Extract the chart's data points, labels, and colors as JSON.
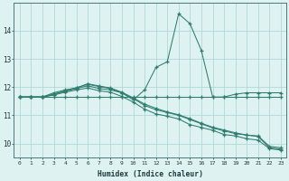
{
  "xlabel": "Humidex (Indice chaleur)",
  "x": [
    0,
    1,
    2,
    3,
    4,
    5,
    6,
    7,
    8,
    9,
    10,
    11,
    12,
    13,
    14,
    15,
    16,
    17,
    18,
    19,
    20,
    21,
    22,
    23
  ],
  "series": [
    [
      11.65,
      11.65,
      11.65,
      11.65,
      11.65,
      11.65,
      11.65,
      11.65,
      11.65,
      11.65,
      11.65,
      11.65,
      11.65,
      11.65,
      11.65,
      11.65,
      11.65,
      11.65,
      11.65,
      11.65,
      11.65,
      11.65,
      11.65,
      11.65
    ],
    [
      11.65,
      11.65,
      11.65,
      11.75,
      11.85,
      11.95,
      12.05,
      11.95,
      11.9,
      11.8,
      11.55,
      11.9,
      12.7,
      12.9,
      14.6,
      14.25,
      13.3,
      11.65,
      11.65,
      11.75,
      11.8,
      11.8,
      11.8,
      11.8
    ],
    [
      11.65,
      11.65,
      11.65,
      11.75,
      11.87,
      11.98,
      12.1,
      12.02,
      11.95,
      11.8,
      11.6,
      11.35,
      11.2,
      11.1,
      11.0,
      10.85,
      10.7,
      10.55,
      10.45,
      10.35,
      10.3,
      10.25,
      9.85,
      9.8
    ],
    [
      11.65,
      11.65,
      11.65,
      11.8,
      11.9,
      11.97,
      12.12,
      12.04,
      11.97,
      11.82,
      11.62,
      11.4,
      11.25,
      11.12,
      11.02,
      10.88,
      10.72,
      10.58,
      10.48,
      10.38,
      10.3,
      10.27,
      9.9,
      9.85
    ],
    [
      11.65,
      11.65,
      11.65,
      11.72,
      11.82,
      11.9,
      11.97,
      11.87,
      11.82,
      11.67,
      11.47,
      11.22,
      11.05,
      10.97,
      10.87,
      10.67,
      10.57,
      10.47,
      10.32,
      10.27,
      10.17,
      10.12,
      9.82,
      9.77
    ]
  ],
  "line_color": "#2e7d6e",
  "bg_color": "#dff2f2",
  "grid_color": "#c8e8e8",
  "ylim": [
    9.5,
    15.0
  ],
  "yticks": [
    10,
    11,
    12,
    13,
    14
  ],
  "xticks": [
    0,
    1,
    2,
    3,
    4,
    5,
    6,
    7,
    8,
    9,
    10,
    11,
    12,
    13,
    14,
    15,
    16,
    17,
    18,
    19,
    20,
    21,
    22,
    23
  ]
}
